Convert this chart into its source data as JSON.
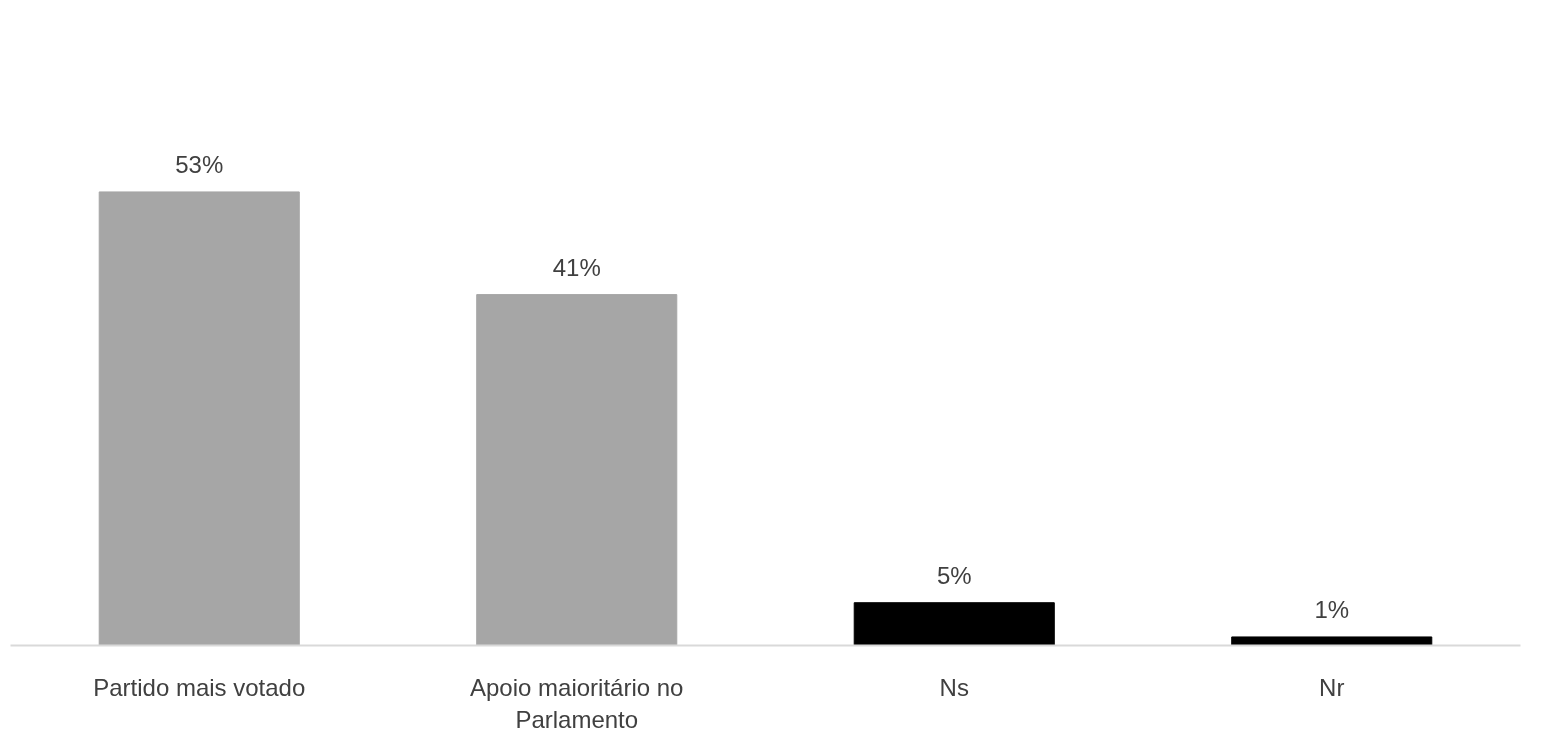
{
  "chart_data": {
    "type": "bar",
    "categories": [
      "Partido mais votado",
      "Apoio maioritário no Parlamento",
      "Ns",
      "Nr"
    ],
    "values": [
      53,
      41,
      5,
      1
    ],
    "colors": [
      "#a6a6a6",
      "#a6a6a6",
      "#000000",
      "#000000"
    ],
    "value_labels": [
      "53%",
      "41%",
      "5%",
      "1%"
    ],
    "grid": false,
    "tick_labels": "x"
  }
}
